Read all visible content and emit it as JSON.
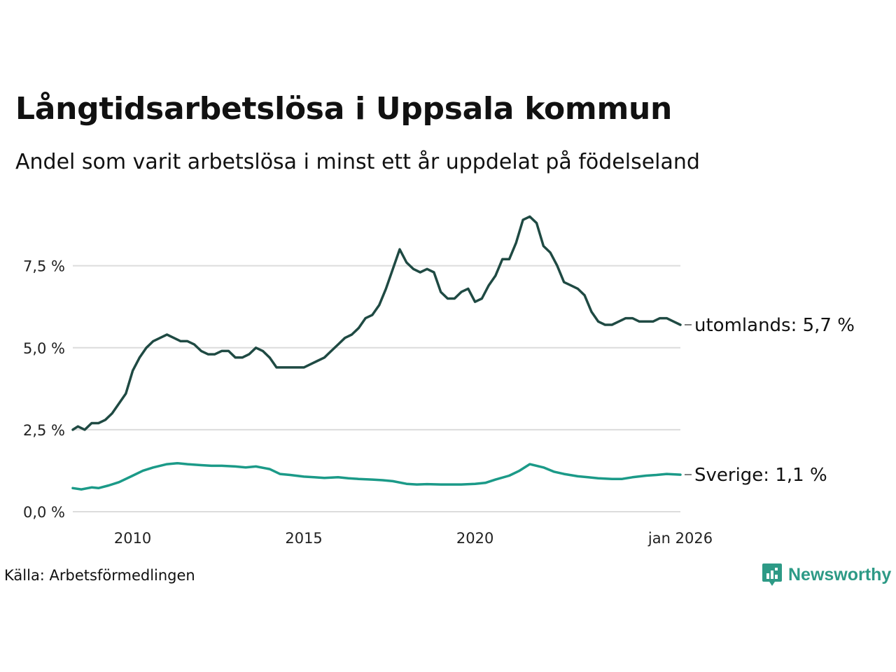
{
  "title": "Långtidsarbetslösa i Uppsala kommun",
  "subtitle": "Andel som varit arbetslösa i minst ett år uppdelat på födelseland",
  "source": "Källa: Arbetsförmedlingen",
  "logo": {
    "text": "Newsworthy",
    "icon": "newsworthy-logo-icon",
    "color": "#2d9a86"
  },
  "chart_data": {
    "type": "line",
    "title": "Långtidsarbetslösa i Uppsala kommun",
    "xlabel": "",
    "ylabel": "",
    "grid": true,
    "xlim": [
      2008.25,
      2026.0
    ],
    "ylim": [
      0,
      9.2
    ],
    "y_ticks": [
      {
        "value": 0,
        "label": "0,0 %"
      },
      {
        "value": 2.5,
        "label": "2,5 %"
      },
      {
        "value": 5,
        "label": "5,0 %"
      },
      {
        "value": 7.5,
        "label": "7,5 %"
      }
    ],
    "x_ticks": [
      {
        "value": 2010.0,
        "label": "2010"
      },
      {
        "value": 2015.0,
        "label": "2015"
      },
      {
        "value": 2020.0,
        "label": "2020"
      },
      {
        "value": 2026.0,
        "label": "jan 2026"
      }
    ],
    "series": [
      {
        "name": "utomlands",
        "label": "utomlands: 5,7 %",
        "color": "#1f4a43",
        "x": [
          2008.25,
          2008.4,
          2008.6,
          2008.8,
          2009.0,
          2009.2,
          2009.4,
          2009.6,
          2009.8,
          2010.0,
          2010.2,
          2010.4,
          2010.6,
          2010.8,
          2011.0,
          2011.2,
          2011.4,
          2011.6,
          2011.8,
          2012.0,
          2012.2,
          2012.4,
          2012.6,
          2012.8,
          2013.0,
          2013.2,
          2013.4,
          2013.6,
          2013.8,
          2014.0,
          2014.2,
          2014.4,
          2014.6,
          2014.8,
          2015.0,
          2015.2,
          2015.4,
          2015.6,
          2015.8,
          2016.0,
          2016.2,
          2016.4,
          2016.6,
          2016.8,
          2017.0,
          2017.2,
          2017.4,
          2017.6,
          2017.8,
          2018.0,
          2018.2,
          2018.4,
          2018.6,
          2018.8,
          2019.0,
          2019.2,
          2019.4,
          2019.6,
          2019.8,
          2020.0,
          2020.2,
          2020.4,
          2020.6,
          2020.8,
          2021.0,
          2021.2,
          2021.4,
          2021.6,
          2021.8,
          2022.0,
          2022.2,
          2022.4,
          2022.6,
          2022.8,
          2023.0,
          2023.2,
          2023.4,
          2023.6,
          2023.8,
          2024.0,
          2024.2,
          2024.4,
          2024.6,
          2024.8,
          2025.0,
          2025.2,
          2025.4,
          2025.6,
          2025.8,
          2026.0
        ],
        "values": [
          2.5,
          2.6,
          2.5,
          2.7,
          2.7,
          2.8,
          3.0,
          3.3,
          3.6,
          4.3,
          4.7,
          5.0,
          5.2,
          5.3,
          5.4,
          5.3,
          5.2,
          5.2,
          5.1,
          4.9,
          4.8,
          4.8,
          4.9,
          4.9,
          4.7,
          4.7,
          4.8,
          5.0,
          4.9,
          4.7,
          4.4,
          4.4,
          4.4,
          4.4,
          4.4,
          4.5,
          4.6,
          4.7,
          4.9,
          5.1,
          5.3,
          5.4,
          5.6,
          5.9,
          6.0,
          6.3,
          6.8,
          7.4,
          8.0,
          7.6,
          7.4,
          7.3,
          7.4,
          7.3,
          6.7,
          6.5,
          6.5,
          6.7,
          6.8,
          6.4,
          6.5,
          6.9,
          7.2,
          7.7,
          7.7,
          8.2,
          8.9,
          9.0,
          8.8,
          8.1,
          7.9,
          7.5,
          7.0,
          6.9,
          6.8,
          6.6,
          6.1,
          5.8,
          5.7,
          5.7,
          5.8,
          5.9,
          5.9,
          5.8,
          5.8,
          5.8,
          5.9,
          5.9,
          5.8,
          5.7
        ]
      },
      {
        "name": "Sverige",
        "label": "Sverige: 1,1 %",
        "color": "#1b9a88",
        "x": [
          2008.25,
          2008.5,
          2008.8,
          2009.0,
          2009.3,
          2009.6,
          2010.0,
          2010.3,
          2010.6,
          2011.0,
          2011.3,
          2011.6,
          2012.0,
          2012.3,
          2012.6,
          2013.0,
          2013.3,
          2013.6,
          2014.0,
          2014.3,
          2014.6,
          2015.0,
          2015.3,
          2015.6,
          2016.0,
          2016.3,
          2016.6,
          2017.0,
          2017.3,
          2017.6,
          2018.0,
          2018.3,
          2018.6,
          2019.0,
          2019.3,
          2019.6,
          2020.0,
          2020.3,
          2020.6,
          2021.0,
          2021.3,
          2021.6,
          2022.0,
          2022.3,
          2022.6,
          2023.0,
          2023.3,
          2023.6,
          2024.0,
          2024.3,
          2024.6,
          2025.0,
          2025.3,
          2025.6,
          2026.0
        ],
        "values": [
          0.72,
          0.68,
          0.74,
          0.72,
          0.8,
          0.9,
          1.1,
          1.25,
          1.35,
          1.45,
          1.48,
          1.45,
          1.42,
          1.4,
          1.4,
          1.38,
          1.35,
          1.38,
          1.3,
          1.15,
          1.12,
          1.07,
          1.05,
          1.03,
          1.05,
          1.02,
          1.0,
          0.98,
          0.96,
          0.93,
          0.85,
          0.83,
          0.84,
          0.83,
          0.83,
          0.83,
          0.85,
          0.88,
          0.98,
          1.1,
          1.25,
          1.45,
          1.35,
          1.22,
          1.15,
          1.08,
          1.05,
          1.02,
          1.0,
          1.0,
          1.05,
          1.1,
          1.12,
          1.15,
          1.13
        ]
      }
    ]
  }
}
